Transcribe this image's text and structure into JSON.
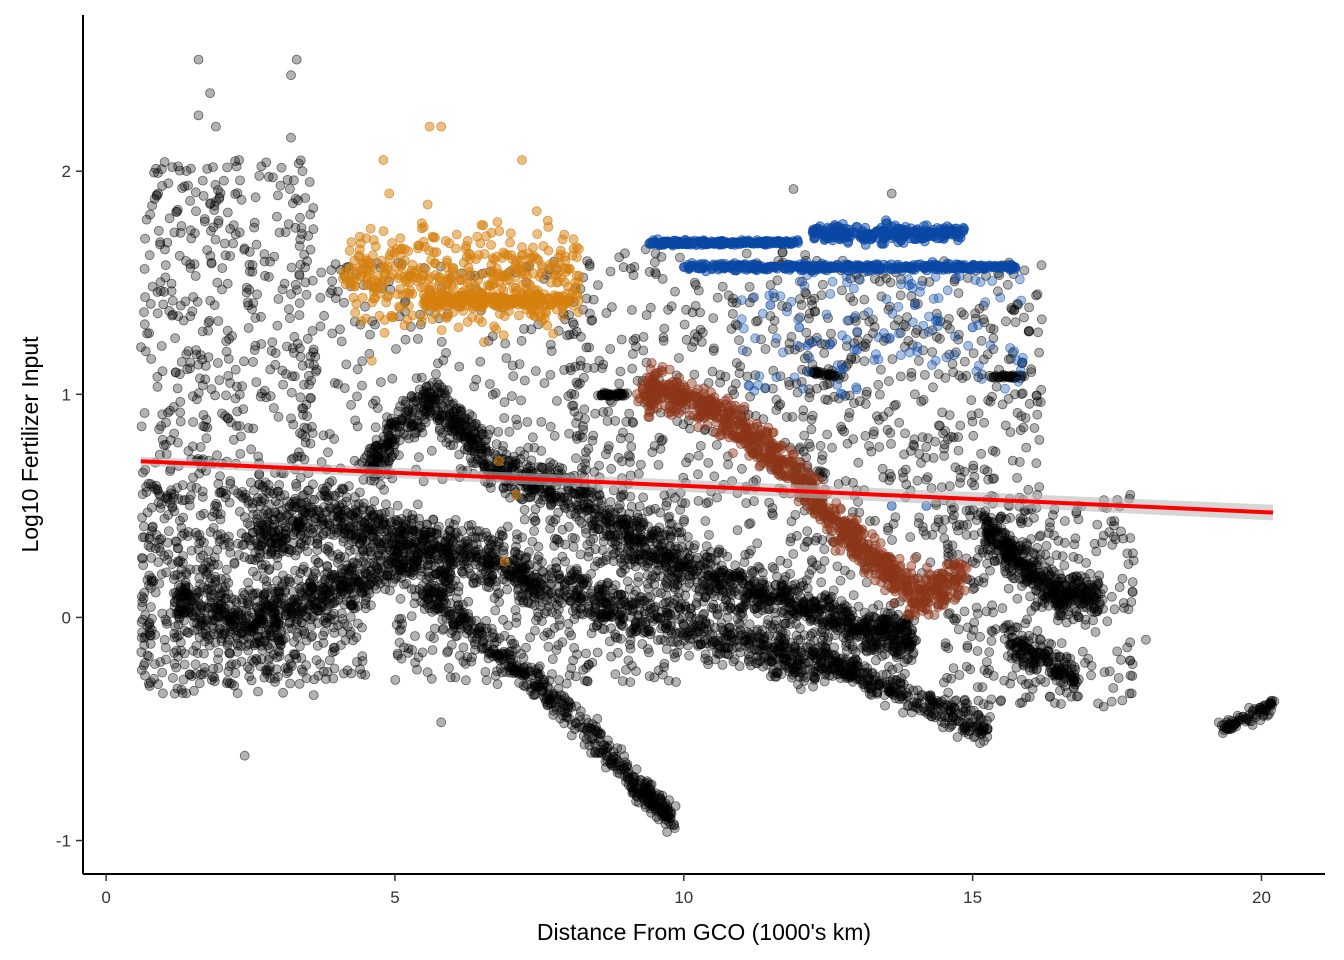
{
  "chart_data": {
    "type": "scatter",
    "title": "",
    "xlabel": "Distance From GCO (1000's km)",
    "ylabel": "Log10 Fertilizer Input",
    "xlim": [
      -0.4,
      21.1
    ],
    "ylim": [
      -1.15,
      2.7
    ],
    "x_ticks": [
      0,
      5,
      10,
      15,
      20
    ],
    "y_ticks": [
      -1,
      0,
      1,
      2
    ],
    "x_tick_labels": [
      "0",
      "5",
      "10",
      "15",
      "20"
    ],
    "y_tick_labels": [
      "-1",
      "0",
      "1",
      "2"
    ],
    "grid": false,
    "legend": "none",
    "colors": {
      "main": "#000000",
      "orange": "#d67f0e",
      "blue": "#0a47a6",
      "brown": "#8c3519",
      "trend": "#ff0000"
    },
    "series": [
      {
        "color": "orange",
        "points": [
          [
            4.1,
            1.55
          ],
          [
            4.3,
            1.6
          ],
          [
            4.5,
            1.7
          ],
          [
            4.7,
            1.5
          ],
          [
            4.9,
            1.9
          ],
          [
            5.1,
            1.65
          ],
          [
            5.3,
            1.45
          ],
          [
            5.5,
            1.75
          ],
          [
            5.7,
            1.4
          ],
          [
            5.9,
            1.6
          ],
          [
            6.1,
            1.3
          ],
          [
            6.3,
            1.5
          ],
          [
            6.5,
            1.45
          ],
          [
            6.7,
            1.55
          ],
          [
            6.9,
            1.35
          ],
          [
            7.1,
            1.6
          ],
          [
            7.3,
            1.45
          ],
          [
            7.5,
            1.4
          ],
          [
            7.7,
            1.5
          ],
          [
            7.9,
            1.35
          ],
          [
            5.6,
            2.2
          ],
          [
            5.8,
            2.2
          ],
          [
            7.2,
            2.05
          ],
          [
            4.8,
            2.05
          ],
          [
            6.8,
            0.7
          ],
          [
            6.9,
            0.25
          ],
          [
            7.1,
            0.55
          ],
          [
            4.6,
            1.15
          ]
        ]
      },
      {
        "color": "blue",
        "points": [
          [
            9.5,
            1.68
          ],
          [
            10.2,
            1.68
          ],
          [
            10.9,
            1.68
          ],
          [
            11.5,
            1.68
          ],
          [
            10.0,
            1.57
          ],
          [
            11.0,
            1.57
          ],
          [
            12.0,
            1.57
          ],
          [
            13.0,
            1.57
          ],
          [
            14.0,
            1.57
          ],
          [
            15.0,
            1.57
          ],
          [
            15.7,
            1.57
          ],
          [
            12.5,
            1.7
          ],
          [
            13.0,
            1.75
          ],
          [
            13.5,
            1.78
          ],
          [
            14.0,
            1.72
          ],
          [
            14.5,
            1.7
          ],
          [
            12.0,
            1.3
          ],
          [
            13.0,
            1.2
          ],
          [
            14.0,
            1.4
          ],
          [
            15.0,
            1.3
          ],
          [
            11.5,
            1.4
          ],
          [
            13.6,
            0.5
          ],
          [
            14.2,
            0.5
          ]
        ]
      },
      {
        "color": "brown",
        "points": [
          [
            9.3,
            1.0
          ],
          [
            9.6,
            1.03
          ],
          [
            10.0,
            0.98
          ],
          [
            10.4,
            0.95
          ],
          [
            10.8,
            0.88
          ],
          [
            11.2,
            0.8
          ],
          [
            11.6,
            0.72
          ],
          [
            12.0,
            0.62
          ],
          [
            12.4,
            0.5
          ],
          [
            12.8,
            0.38
          ],
          [
            13.2,
            0.3
          ],
          [
            13.6,
            0.2
          ],
          [
            14.0,
            0.1
          ],
          [
            14.4,
            0.12
          ],
          [
            14.8,
            0.2
          ]
        ]
      }
    ],
    "trend_line": {
      "x": [
        0.6,
        20.2
      ],
      "y": [
        0.7,
        0.47
      ]
    }
  }
}
